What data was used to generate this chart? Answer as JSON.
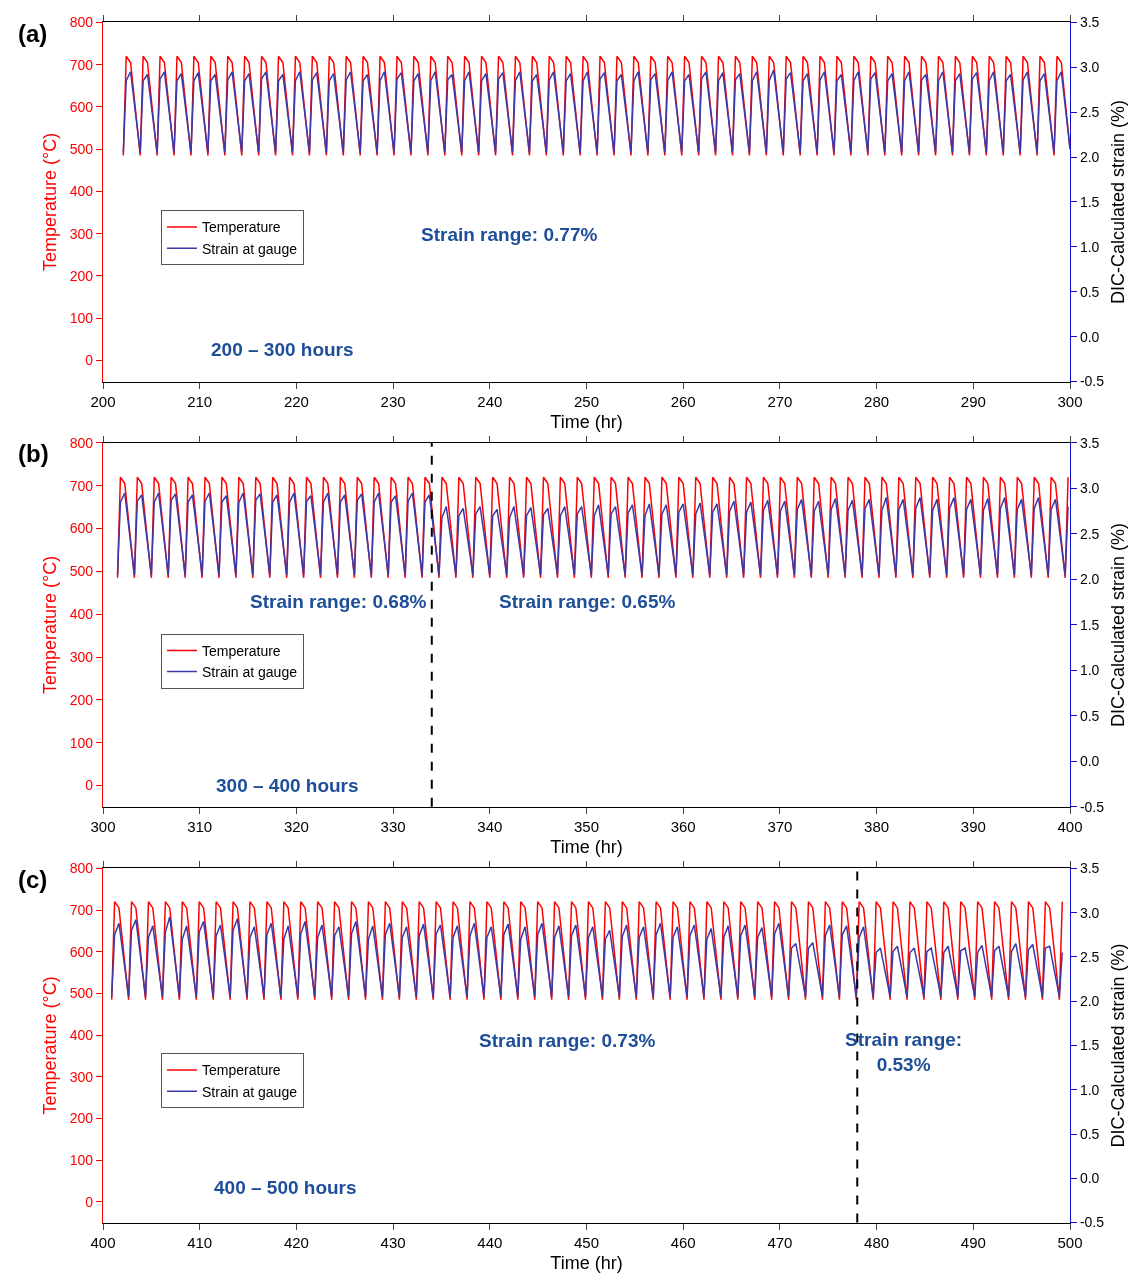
{
  "chart_data": [
    {
      "type": "line",
      "title": "(a)",
      "xlabel": "Time (hr)",
      "ylabel": "Temperature (°C)",
      "y2label": "DIC-Calculated strain (%)",
      "annotations": [
        "Strain range: 0.77%",
        "200 – 300 hours"
      ],
      "xlim": [
        200,
        300
      ],
      "xticks": [
        200,
        210,
        220,
        230,
        240,
        250,
        260,
        270,
        280,
        290,
        300
      ],
      "ylim": [
        -50,
        800
      ],
      "yticks": [
        0,
        100,
        200,
        300,
        400,
        500,
        600,
        700,
        800
      ],
      "y2lim": [
        -0.5,
        3.5
      ],
      "y2ticks": [
        {
          "value": -0.5,
          "label": "-0.5"
        },
        {
          "value": 0,
          "label": "0.0"
        },
        0.5,
        {
          "value": 1,
          "label": "1.0"
        },
        1.5,
        {
          "value": 2,
          "label": "2.0"
        },
        2.5,
        {
          "value": 3,
          "label": "3.0"
        },
        3.5
      ],
      "grid": false,
      "legend": "left",
      "x": [
        202.1,
        202.4,
        202.85,
        203.85,
        204.15,
        204.6,
        205.6,
        205.9,
        206.35,
        207.35,
        207.65,
        208.1,
        209.1,
        209.4,
        209.85,
        210.85,
        211.15,
        211.6,
        212.6,
        212.9,
        213.35,
        214.35,
        214.65,
        215.1,
        216.1,
        216.4,
        216.85,
        217.85,
        218.15,
        218.6,
        219.6,
        219.9,
        220.35,
        221.35,
        221.65,
        222.1,
        223.1,
        223.4,
        223.85,
        224.85,
        225.15,
        225.6,
        226.6,
        226.9,
        227.35,
        228.35,
        228.65,
        229.1,
        230.1,
        230.4,
        230.85,
        231.85,
        232.15,
        232.6,
        233.6,
        233.9,
        234.35,
        235.35,
        235.65,
        236.1,
        237.1,
        237.4,
        237.85,
        238.85,
        239.15,
        239.6,
        240.6,
        240.9,
        241.35,
        242.35,
        242.65,
        243.1,
        244.1,
        244.4,
        244.85,
        245.85,
        246.15,
        246.6,
        247.6,
        247.9,
        248.35,
        249.35,
        249.65,
        250.1,
        251.1,
        251.4,
        251.85,
        252.85,
        253.15,
        253.6,
        254.6,
        254.9,
        255.35,
        256.35,
        256.65,
        257.1,
        258.1,
        258.4,
        258.85,
        259.85,
        260.15,
        260.6,
        261.6,
        261.9,
        262.35,
        263.35,
        263.65,
        264.1,
        265.1,
        265.4,
        265.85,
        266.85,
        267.15,
        267.6,
        268.6,
        268.9,
        269.35,
        270.35,
        270.65,
        271.1,
        272.1,
        272.4,
        272.85,
        273.85,
        274.15,
        274.6,
        275.6,
        275.9,
        276.35,
        277.35,
        277.65,
        278.1,
        279.1,
        279.4,
        279.85,
        280.85,
        281.15,
        281.6,
        282.6,
        282.9,
        283.35,
        284.35,
        284.65,
        285.1,
        286.1,
        286.4,
        286.85,
        287.85,
        288.15,
        288.6,
        289.6,
        289.9,
        290.35,
        291.35,
        291.65,
        292.1,
        293.1,
        293.4,
        293.85,
        294.85,
        295.15,
        295.6,
        296.6,
        296.9,
        297.35,
        298.35,
        298.65,
        299.1,
        300
      ],
      "series": [
        {
          "name": "Temperature",
          "color": "#ff0000",
          "values": [
            485,
            720,
            705,
            485,
            720,
            705,
            485,
            720,
            705,
            485,
            720,
            705,
            485,
            720,
            705,
            485,
            720,
            705,
            485,
            720,
            705,
            485,
            720,
            705,
            485,
            720,
            705,
            485,
            720,
            705,
            485,
            720,
            705,
            485,
            720,
            705,
            485,
            720,
            705,
            485,
            720,
            705,
            485,
            720,
            705,
            485,
            720,
            705,
            485,
            720,
            705,
            485,
            720,
            705,
            485,
            720,
            705,
            485,
            720,
            705,
            485,
            720,
            705,
            485,
            720,
            705,
            485,
            720,
            705,
            485,
            720,
            705,
            485,
            720,
            705,
            485,
            720,
            705,
            485,
            720,
            705,
            485,
            720,
            705,
            485,
            720,
            705,
            485,
            720,
            705,
            485,
            720,
            705,
            485,
            720,
            705,
            485,
            720,
            705,
            485,
            720,
            705,
            485,
            720,
            705,
            485,
            720,
            705,
            485,
            720,
            705,
            485,
            720,
            705,
            485,
            720,
            705,
            485,
            720,
            705,
            485,
            720,
            705,
            485,
            720,
            705,
            485,
            720,
            705,
            485,
            720,
            705,
            485,
            720,
            705,
            485,
            720,
            705,
            485,
            720,
            705,
            485,
            720,
            705,
            485,
            720,
            705,
            485,
            720,
            705,
            485,
            720,
            705,
            485,
            720,
            705,
            485,
            720,
            705,
            485,
            720,
            705,
            485,
            720,
            705,
            485,
            720,
            705,
            500
          ]
        },
        {
          "name": "Strain at gauge",
          "color": "#3a3aa8",
          "axis": "y2",
          "values": [
            2.05,
            2.85,
            2.95,
            2.05,
            2.85,
            2.92,
            2.05,
            2.87,
            2.95,
            2.05,
            2.85,
            2.93,
            2.05,
            2.85,
            2.94,
            2.05,
            2.85,
            2.92,
            2.05,
            2.86,
            2.95,
            2.05,
            2.85,
            2.93,
            2.05,
            2.87,
            2.95,
            2.05,
            2.85,
            2.92,
            2.05,
            2.85,
            2.95,
            2.05,
            2.86,
            2.94,
            2.05,
            2.85,
            2.93,
            2.05,
            2.86,
            2.95,
            2.05,
            2.85,
            2.92,
            2.05,
            2.85,
            2.95,
            2.05,
            2.87,
            2.94,
            2.05,
            2.85,
            2.93,
            2.05,
            2.85,
            2.95,
            2.05,
            2.86,
            2.92,
            2.05,
            2.85,
            2.95,
            2.05,
            2.85,
            2.93,
            2.05,
            2.87,
            2.94,
            2.05,
            2.85,
            2.95,
            2.05,
            2.85,
            2.92,
            2.05,
            2.86,
            2.95,
            2.05,
            2.85,
            2.93,
            2.05,
            2.85,
            2.95,
            2.05,
            2.87,
            2.94,
            2.05,
            2.85,
            2.92,
            2.05,
            2.85,
            2.95,
            2.05,
            2.86,
            2.93,
            2.05,
            2.85,
            2.95,
            2.05,
            2.85,
            2.92,
            2.05,
            2.87,
            2.95,
            2.05,
            2.85,
            2.94,
            2.05,
            2.86,
            2.93,
            2.05,
            2.85,
            2.95,
            2.05,
            2.85,
            2.97,
            2.05,
            2.87,
            2.94,
            2.05,
            2.85,
            2.93,
            2.05,
            2.86,
            2.95,
            2.05,
            2.85,
            2.92,
            2.05,
            2.85,
            2.95,
            2.05,
            2.87,
            2.94,
            2.05,
            2.85,
            2.93,
            2.05,
            2.85,
            2.95,
            2.05,
            2.86,
            2.92,
            2.05,
            2.85,
            2.95,
            2.05,
            2.85,
            2.93,
            2.05,
            2.87,
            2.94,
            2.05,
            2.85,
            2.95,
            2.05,
            2.85,
            2.92,
            2.05,
            2.86,
            2.95,
            2.05,
            2.85,
            2.93,
            2.05,
            2.85,
            2.95,
            2.1
          ]
        }
      ]
    },
    {
      "type": "line",
      "title": "(b)",
      "xlabel": "Time (hr)",
      "ylabel": "Temperature (°C)",
      "y2label": "DIC-Calculated strain (%)",
      "annotations": [
        "Strain range: 0.68%",
        "Strain range: 0.65%",
        "300 – 400 hours"
      ],
      "ref_lines": [
        {
          "axis": "x",
          "value": 334,
          "color": "#000000",
          "line_style": "dashed"
        }
      ],
      "xlim": [
        300,
        400
      ],
      "xticks": [
        300,
        310,
        320,
        330,
        340,
        350,
        360,
        370,
        380,
        390,
        400
      ],
      "ylim": [
        -50,
        800
      ],
      "yticks": [
        0,
        100,
        200,
        300,
        400,
        500,
        600,
        700,
        800
      ],
      "y2lim": [
        -0.5,
        3.5
      ],
      "y2ticks": [
        {
          "value": -0.5,
          "label": "-0.5"
        },
        {
          "value": 0,
          "label": "0.0"
        },
        0.5,
        {
          "value": 1,
          "label": "1.0"
        },
        1.5,
        {
          "value": 2,
          "label": "2.0"
        },
        2.5,
        {
          "value": 3,
          "label": "3.0"
        },
        3.5
      ],
      "grid": false,
      "legend": "left",
      "x": [
        301.5,
        301.8,
        302.25,
        303.25,
        303.55,
        304,
        305,
        305.3,
        305.75,
        306.75,
        307.05,
        307.5,
        308.5,
        308.8,
        309.25,
        310.25,
        310.55,
        311,
        312,
        312.3,
        312.75,
        313.75,
        314.05,
        314.5,
        315.5,
        315.8,
        316.25,
        317.25,
        317.55,
        318,
        319,
        319.3,
        319.75,
        320.75,
        321.05,
        321.5,
        322.5,
        322.8,
        323.25,
        324.25,
        324.55,
        325,
        326,
        326.3,
        326.75,
        327.75,
        328.05,
        328.5,
        329.5,
        329.8,
        330.25,
        331.25,
        331.55,
        332,
        333,
        333.3,
        333.75,
        334.75,
        335.05,
        335.5,
        336.5,
        336.8,
        337.25,
        338.25,
        338.55,
        339,
        340,
        340.3,
        340.75,
        341.75,
        342.05,
        342.5,
        343.5,
        343.8,
        344.25,
        345.25,
        345.55,
        346,
        347,
        347.3,
        347.75,
        348.75,
        349.05,
        349.5,
        350.5,
        350.8,
        351.25,
        352.25,
        352.55,
        353,
        354,
        354.3,
        354.75,
        355.75,
        356.05,
        356.5,
        357.5,
        357.8,
        358.25,
        359.25,
        359.55,
        360,
        361,
        361.3,
        361.75,
        362.75,
        363.05,
        363.5,
        364.5,
        364.8,
        365.25,
        366.25,
        366.55,
        367,
        368,
        368.3,
        368.75,
        369.75,
        370.05,
        370.5,
        371.5,
        371.8,
        372.25,
        373.25,
        373.55,
        374,
        375,
        375.3,
        375.75,
        376.75,
        377.05,
        377.5,
        378.5,
        378.8,
        379.25,
        380.25,
        380.55,
        381,
        382,
        382.3,
        382.75,
        383.75,
        384.05,
        384.5,
        385.5,
        385.8,
        386.25,
        387.25,
        387.55,
        388,
        389,
        389.3,
        389.75,
        390.75,
        391.05,
        391.5,
        392.5,
        392.8,
        393.25,
        394.25,
        394.55,
        395,
        396,
        396.3,
        396.75,
        397.75,
        398.05,
        398.5,
        399.5,
        399.8
      ],
      "series": [
        {
          "name": "Temperature",
          "color": "#ff0000",
          "values": [
            485,
            720,
            705,
            485,
            720,
            705,
            485,
            720,
            705,
            485,
            720,
            705,
            485,
            720,
            705,
            485,
            720,
            705,
            485,
            720,
            705,
            485,
            720,
            705,
            485,
            720,
            705,
            485,
            720,
            705,
            485,
            720,
            705,
            485,
            720,
            705,
            485,
            720,
            705,
            485,
            720,
            705,
            485,
            720,
            705,
            485,
            720,
            705,
            485,
            720,
            705,
            485,
            720,
            705,
            485,
            720,
            705,
            485,
            720,
            705,
            485,
            720,
            705,
            485,
            720,
            705,
            485,
            720,
            705,
            485,
            720,
            705,
            485,
            720,
            705,
            485,
            720,
            705,
            485,
            720,
            705,
            485,
            720,
            705,
            485,
            720,
            705,
            485,
            720,
            705,
            485,
            720,
            705,
            485,
            720,
            705,
            485,
            720,
            705,
            485,
            720,
            705,
            485,
            720,
            705,
            485,
            720,
            705,
            485,
            720,
            705,
            485,
            720,
            705,
            485,
            720,
            705,
            485,
            720,
            705,
            485,
            720,
            705,
            485,
            720,
            705,
            485,
            720,
            705,
            485,
            720,
            705,
            485,
            720,
            705,
            485,
            720,
            705,
            485,
            720,
            705,
            485,
            720,
            705,
            485,
            720,
            705,
            485,
            720,
            705,
            485,
            720,
            705,
            485,
            720,
            705,
            485,
            720,
            705,
            485,
            720,
            705,
            485,
            720,
            705,
            485,
            720,
            705,
            485,
            720
          ]
        },
        {
          "name": "Strain at gauge",
          "color": "#3a3aa8",
          "axis": "y2",
          "values": [
            2.05,
            2.85,
            2.95,
            2.05,
            2.86,
            2.93,
            2.05,
            2.85,
            2.95,
            2.05,
            2.87,
            2.94,
            2.05,
            2.85,
            2.93,
            2.05,
            2.86,
            2.95,
            2.05,
            2.85,
            2.92,
            2.05,
            2.85,
            2.95,
            2.05,
            2.87,
            2.94,
            2.05,
            2.85,
            2.93,
            2.05,
            2.85,
            2.95,
            2.05,
            2.86,
            2.92,
            2.05,
            2.85,
            2.95,
            2.05,
            2.85,
            2.93,
            2.05,
            2.87,
            2.94,
            2.05,
            2.85,
            2.95,
            2.05,
            2.85,
            2.92,
            2.05,
            2.86,
            2.95,
            2.05,
            2.85,
            2.93,
            2.05,
            2.68,
            2.8,
            2.05,
            2.7,
            2.78,
            2.05,
            2.72,
            2.8,
            2.05,
            2.7,
            2.77,
            2.05,
            2.68,
            2.8,
            2.05,
            2.7,
            2.79,
            2.05,
            2.71,
            2.78,
            2.05,
            2.7,
            2.8,
            2.05,
            2.72,
            2.8,
            2.05,
            2.7,
            2.82,
            2.05,
            2.72,
            2.8,
            2.05,
            2.73,
            2.82,
            2.05,
            2.7,
            2.83,
            2.05,
            2.72,
            2.82,
            2.05,
            2.74,
            2.83,
            2.05,
            2.72,
            2.84,
            2.05,
            2.74,
            2.83,
            2.05,
            2.75,
            2.86,
            2.05,
            2.74,
            2.85,
            2.05,
            2.76,
            2.87,
            2.05,
            2.75,
            2.86,
            2.05,
            2.77,
            2.88,
            2.05,
            2.75,
            2.86,
            2.05,
            2.77,
            2.89,
            2.05,
            2.76,
            2.87,
            2.05,
            2.78,
            2.88,
            2.05,
            2.76,
            2.9,
            2.05,
            2.77,
            2.88,
            2.05,
            2.78,
            2.9,
            2.05,
            2.76,
            2.88,
            2.05,
            2.78,
            2.9,
            2.05,
            2.77,
            2.88,
            2.05,
            2.76,
            2.89,
            2.05,
            2.78,
            2.9,
            2.05,
            2.77,
            2.88,
            2.05,
            2.78,
            2.9,
            2.05,
            2.77,
            2.88,
            2.05,
            2.8
          ]
        }
      ]
    },
    {
      "type": "line",
      "title": "(c)",
      "xlabel": "Time (hr)",
      "ylabel": "Temperature (°C)",
      "y2label": "DIC-Calculated strain (%)",
      "annotations": [
        "Strain range: 0.73%",
        "Strain range: 0.53%",
        "400 – 500 hours"
      ],
      "ref_lines": [
        {
          "axis": "x",
          "value": 478,
          "color": "#000000",
          "line_style": "dashed"
        }
      ],
      "xlim": [
        400,
        500
      ],
      "xticks": [
        400,
        410,
        420,
        430,
        440,
        450,
        460,
        470,
        480,
        490,
        500
      ],
      "ylim": [
        -50,
        800
      ],
      "yticks": [
        0,
        100,
        200,
        300,
        400,
        500,
        600,
        700,
        800
      ],
      "y2lim": [
        -0.5,
        3.5
      ],
      "y2ticks": [
        {
          "value": -0.5,
          "label": "-0.5"
        },
        {
          "value": 0,
          "label": "0.0"
        },
        0.5,
        {
          "value": 1,
          "label": "1.0"
        },
        1.5,
        {
          "value": 2,
          "label": "2.0"
        },
        2.5,
        {
          "value": 3,
          "label": "3.0"
        },
        3.5
      ],
      "grid": false,
      "legend": "left",
      "x": [
        400.9,
        401.2,
        401.65,
        402.65,
        402.95,
        403.4,
        404.4,
        404.7,
        405.15,
        406.15,
        406.45,
        406.9,
        407.9,
        408.2,
        408.65,
        409.65,
        409.95,
        410.4,
        411.4,
        411.7,
        412.15,
        413.15,
        413.45,
        413.9,
        414.9,
        415.2,
        415.65,
        416.65,
        416.95,
        417.4,
        418.4,
        418.7,
        419.15,
        420.15,
        420.45,
        420.9,
        421.9,
        422.2,
        422.65,
        423.65,
        423.95,
        424.4,
        425.4,
        425.7,
        426.15,
        427.15,
        427.45,
        427.9,
        428.9,
        429.2,
        429.65,
        430.65,
        430.95,
        431.4,
        432.4,
        432.7,
        433.15,
        434.15,
        434.45,
        434.9,
        435.9,
        436.2,
        436.65,
        437.65,
        437.95,
        438.4,
        439.4,
        439.7,
        440.15,
        441.15,
        441.45,
        441.9,
        442.9,
        443.2,
        443.65,
        444.65,
        444.95,
        445.4,
        446.4,
        446.7,
        447.15,
        448.15,
        448.45,
        448.9,
        449.9,
        450.2,
        450.65,
        451.65,
        451.95,
        452.4,
        453.4,
        453.7,
        454.15,
        455.15,
        455.45,
        455.9,
        456.9,
        457.2,
        457.65,
        458.65,
        458.95,
        459.4,
        460.4,
        460.7,
        461.15,
        462.15,
        462.45,
        462.9,
        463.9,
        464.2,
        464.65,
        465.65,
        465.95,
        466.4,
        467.4,
        467.7,
        468.15,
        469.15,
        469.45,
        469.9,
        470.9,
        471.2,
        471.65,
        472.65,
        472.95,
        473.4,
        474.4,
        474.7,
        475.15,
        476.15,
        476.45,
        476.9,
        477.9,
        478.2,
        478.65,
        479.65,
        479.95,
        480.4,
        481.4,
        481.7,
        482.15,
        483.15,
        483.45,
        483.9,
        484.9,
        485.2,
        485.65,
        486.65,
        486.95,
        487.4,
        488.4,
        488.7,
        489.15,
        490.15,
        490.45,
        490.9,
        491.9,
        492.2,
        492.65,
        493.65,
        493.95,
        494.4,
        495.4,
        495.7,
        496.15,
        497.15,
        497.45,
        497.9,
        498.9,
        499.2
      ],
      "series": [
        {
          "name": "Temperature",
          "color": "#ff0000",
          "values": [
            485,
            720,
            705,
            485,
            720,
            705,
            485,
            720,
            705,
            485,
            720,
            705,
            485,
            720,
            705,
            485,
            720,
            705,
            485,
            720,
            705,
            485,
            720,
            705,
            485,
            720,
            705,
            485,
            720,
            705,
            485,
            720,
            705,
            485,
            720,
            705,
            485,
            720,
            705,
            485,
            720,
            705,
            485,
            720,
            705,
            485,
            720,
            705,
            485,
            720,
            705,
            485,
            720,
            705,
            485,
            720,
            705,
            485,
            720,
            705,
            485,
            720,
            705,
            485,
            720,
            705,
            485,
            720,
            705,
            485,
            720,
            705,
            485,
            720,
            705,
            485,
            720,
            705,
            485,
            720,
            705,
            485,
            720,
            705,
            485,
            720,
            705,
            485,
            720,
            705,
            485,
            720,
            705,
            485,
            720,
            705,
            485,
            720,
            705,
            485,
            720,
            705,
            485,
            720,
            705,
            485,
            720,
            705,
            485,
            720,
            705,
            485,
            720,
            705,
            485,
            720,
            705,
            485,
            720,
            705,
            485,
            720,
            705,
            485,
            720,
            705,
            485,
            720,
            705,
            485,
            720,
            705,
            485,
            720,
            705,
            485,
            720,
            705,
            485,
            720,
            705,
            485,
            720,
            705,
            485,
            720,
            705,
            485,
            720,
            705,
            485,
            720,
            705,
            485,
            720,
            705,
            485,
            720,
            705,
            485,
            720,
            705,
            485,
            720,
            705,
            485,
            720,
            705,
            485,
            720
          ]
        },
        {
          "name": "Strain at gauge",
          "color": "#3a3aa8",
          "axis": "y2",
          "values": [
            2.05,
            2.75,
            2.88,
            2.05,
            2.8,
            2.92,
            2.05,
            2.72,
            2.85,
            2.05,
            2.78,
            2.95,
            2.05,
            2.7,
            2.85,
            2.05,
            2.78,
            2.9,
            2.05,
            2.74,
            2.86,
            2.05,
            2.8,
            2.93,
            2.05,
            2.72,
            2.84,
            2.05,
            2.75,
            2.88,
            2.05,
            2.7,
            2.85,
            2.05,
            2.76,
            2.9,
            2.05,
            2.72,
            2.86,
            2.05,
            2.74,
            2.84,
            2.05,
            2.76,
            2.9,
            2.05,
            2.7,
            2.85,
            2.05,
            2.75,
            2.88,
            2.05,
            2.72,
            2.84,
            2.05,
            2.74,
            2.87,
            2.05,
            2.76,
            2.86,
            2.05,
            2.72,
            2.85,
            2.05,
            2.74,
            2.88,
            2.05,
            2.72,
            2.84,
            2.05,
            2.75,
            2.87,
            2.05,
            2.7,
            2.84,
            2.05,
            2.75,
            2.88,
            2.05,
            2.72,
            2.85,
            2.05,
            2.74,
            2.86,
            2.05,
            2.72,
            2.84,
            2.05,
            2.7,
            2.8,
            2.05,
            2.73,
            2.86,
            2.05,
            2.72,
            2.84,
            2.05,
            2.75,
            2.88,
            2.05,
            2.72,
            2.84,
            2.05,
            2.74,
            2.86,
            2.05,
            2.7,
            2.82,
            2.05,
            2.72,
            2.85,
            2.05,
            2.74,
            2.86,
            2.05,
            2.72,
            2.83,
            2.05,
            2.76,
            2.88,
            2.05,
            2.6,
            2.65,
            2.05,
            2.6,
            2.66,
            2.05,
            2.74,
            2.86,
            2.05,
            2.75,
            2.85,
            2.05,
            2.72,
            2.84,
            2.05,
            2.55,
            2.6,
            2.05,
            2.56,
            2.62,
            2.05,
            2.55,
            2.6,
            2.05,
            2.56,
            2.6,
            2.05,
            2.55,
            2.62,
            2.05,
            2.57,
            2.6,
            2.05,
            2.55,
            2.63,
            2.05,
            2.57,
            2.62,
            2.05,
            2.56,
            2.65,
            2.05,
            2.58,
            2.64,
            2.05,
            2.6,
            2.62,
            2.05,
            2.55
          ]
        }
      ]
    }
  ]
}
